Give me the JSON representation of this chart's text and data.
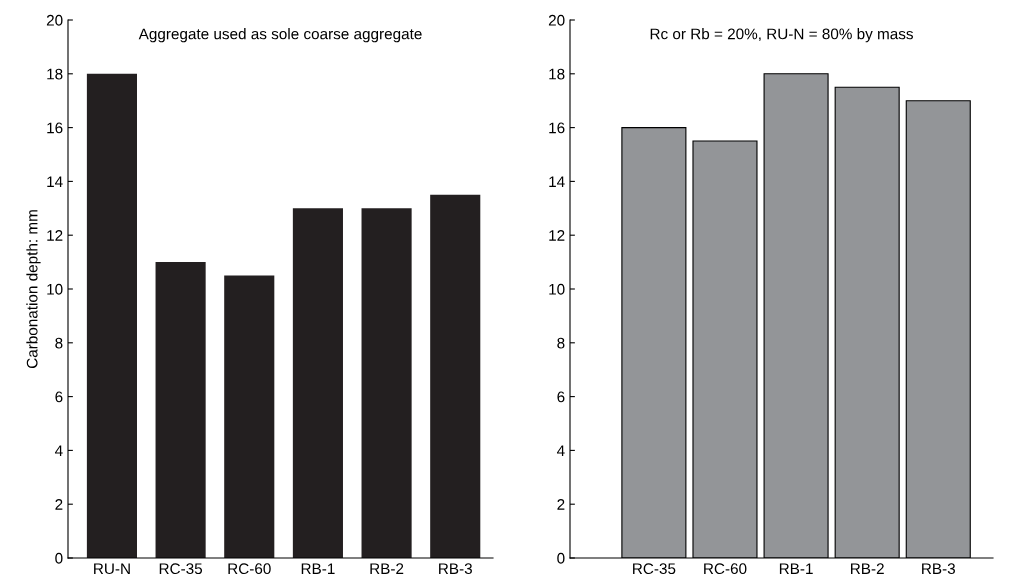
{
  "chart_data": [
    {
      "type": "bar",
      "title": "Aggregate used as sole coarse aggregate",
      "ylabel": "Carbonation depth: mm",
      "categories": [
        "RU-N",
        "RC-35",
        "RC-60",
        "RB-1",
        "RB-2",
        "RB-3"
      ],
      "values": [
        18,
        11,
        10.5,
        13,
        13,
        13.5
      ],
      "color": "#231f20",
      "ylim": [
        0,
        20
      ],
      "yticks": [
        0,
        2,
        4,
        6,
        8,
        10,
        12,
        14,
        16,
        18,
        20
      ],
      "grid": false
    },
    {
      "type": "bar",
      "title": "Rc or Rb = 20%, RU-N = 80% by mass",
      "categories": [
        "RC-35",
        "RC-60",
        "RB-1",
        "RB-2",
        "RB-3"
      ],
      "values": [
        16,
        15.5,
        18,
        17.5,
        17
      ],
      "color": "#939598",
      "ylim": [
        0,
        20
      ],
      "yticks": [
        0,
        2,
        4,
        6,
        8,
        10,
        12,
        14,
        16,
        18,
        20
      ],
      "grid": false
    }
  ]
}
